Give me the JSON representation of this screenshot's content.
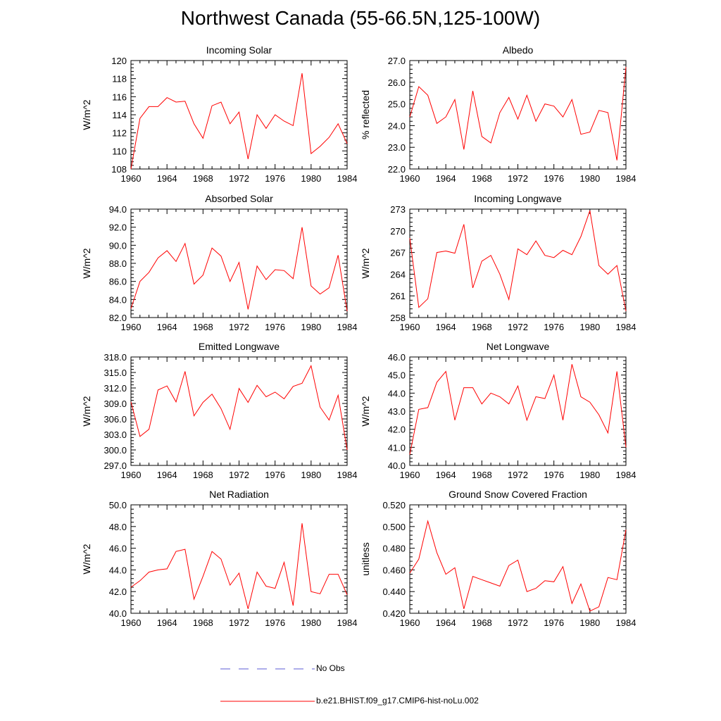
{
  "figure": {
    "title": "Northwest Canada (55-66.5N,125-100W)"
  },
  "legend": {
    "items": [
      {
        "label": "No Obs",
        "color": "#5b5bd6",
        "style": "dashed"
      },
      {
        "label": "b.e21.BHIST.f09_g17.CMIP6-hist-noLu.002",
        "color": "#ff0000",
        "style": "solid"
      }
    ]
  },
  "colors": {
    "series": "#ff0000",
    "axis": "#000000"
  },
  "chart_data": [
    {
      "type": "line",
      "title": "Incoming Solar",
      "ylabel": "W/m^2",
      "xlim": [
        1960,
        1984
      ],
      "ylim": [
        108,
        120
      ],
      "xticks": [
        1960,
        1964,
        1968,
        1972,
        1976,
        1980,
        1984
      ],
      "yticks": [
        "108",
        "110",
        "112",
        "114",
        "116",
        "118",
        "120"
      ],
      "x": [
        1960,
        1961,
        1962,
        1963,
        1964,
        1965,
        1966,
        1967,
        1968,
        1969,
        1970,
        1971,
        1972,
        1973,
        1974,
        1975,
        1976,
        1977,
        1978,
        1979,
        1980,
        1981,
        1982,
        1983,
        1984
      ],
      "series": [
        {
          "values": [
            108.0,
            113.6,
            114.9,
            114.9,
            115.9,
            115.4,
            115.5,
            113.0,
            111.4,
            115.0,
            115.4,
            113.0,
            114.3,
            109.1,
            114.0,
            112.5,
            114.0,
            113.3,
            112.8,
            118.6,
            109.7,
            110.5,
            111.5,
            113.0,
            110.8
          ]
        }
      ]
    },
    {
      "type": "line",
      "title": "Albedo",
      "ylabel": "% reflected",
      "xlim": [
        1960,
        1984
      ],
      "ylim": [
        22.0,
        27.0
      ],
      "xticks": [
        1960,
        1964,
        1968,
        1972,
        1976,
        1980,
        1984
      ],
      "yticks": [
        "22.0",
        "23.0",
        "24.0",
        "25.0",
        "26.0",
        "27.0"
      ],
      "x": [
        1960,
        1961,
        1962,
        1963,
        1964,
        1965,
        1966,
        1967,
        1968,
        1969,
        1970,
        1971,
        1972,
        1973,
        1974,
        1975,
        1976,
        1977,
        1978,
        1979,
        1980,
        1981,
        1982,
        1983,
        1984
      ],
      "series": [
        {
          "values": [
            24.4,
            25.8,
            25.4,
            24.1,
            24.4,
            25.2,
            22.9,
            25.6,
            23.5,
            23.2,
            24.6,
            25.3,
            24.3,
            25.4,
            24.2,
            25.0,
            24.9,
            24.4,
            25.2,
            23.6,
            23.7,
            24.7,
            24.6,
            22.4,
            26.7
          ]
        }
      ]
    },
    {
      "type": "line",
      "title": "Absorbed Solar",
      "ylabel": "W/m^2",
      "xlim": [
        1960,
        1984
      ],
      "ylim": [
        82.0,
        94.0
      ],
      "xticks": [
        1960,
        1964,
        1968,
        1972,
        1976,
        1980,
        1984
      ],
      "yticks": [
        "82.0",
        "84.0",
        "86.0",
        "88.0",
        "90.0",
        "92.0",
        "94.0"
      ],
      "x": [
        1960,
        1961,
        1962,
        1963,
        1964,
        1965,
        1966,
        1967,
        1968,
        1969,
        1970,
        1971,
        1972,
        1973,
        1974,
        1975,
        1976,
        1977,
        1978,
        1979,
        1980,
        1981,
        1982,
        1983,
        1984
      ],
      "series": [
        {
          "values": [
            83.0,
            86.0,
            87.0,
            88.6,
            89.4,
            88.2,
            90.2,
            85.7,
            86.7,
            89.7,
            88.8,
            86.0,
            88.1,
            82.9,
            87.7,
            86.2,
            87.3,
            87.2,
            86.3,
            92.0,
            85.5,
            84.6,
            85.3,
            88.9,
            82.7
          ]
        }
      ]
    },
    {
      "type": "line",
      "title": "Incoming Longwave",
      "ylabel": "W/m^2",
      "xlim": [
        1960,
        1984
      ],
      "ylim": [
        258,
        273
      ],
      "xticks": [
        1960,
        1964,
        1968,
        1972,
        1976,
        1980,
        1984
      ],
      "yticks": [
        "258",
        "261",
        "264",
        "267",
        "270",
        "273"
      ],
      "x": [
        1960,
        1961,
        1962,
        1963,
        1964,
        1965,
        1966,
        1967,
        1968,
        1969,
        1970,
        1971,
        1972,
        1973,
        1974,
        1975,
        1976,
        1977,
        1978,
        1979,
        1980,
        1981,
        1982,
        1983,
        1984
      ],
      "series": [
        {
          "values": [
            269.0,
            259.4,
            260.6,
            267.0,
            267.2,
            266.9,
            270.9,
            262.1,
            265.8,
            266.6,
            264.0,
            260.5,
            267.5,
            266.7,
            268.6,
            266.6,
            266.3,
            267.3,
            266.7,
            269.2,
            272.8,
            265.2,
            264.0,
            265.2,
            258.9
          ]
        }
      ]
    },
    {
      "type": "line",
      "title": "Emitted Longwave",
      "ylabel": "W/m^2",
      "xlim": [
        1960,
        1984
      ],
      "ylim": [
        297.0,
        318.0
      ],
      "xticks": [
        1960,
        1964,
        1968,
        1972,
        1976,
        1980,
        1984
      ],
      "yticks": [
        "297.0",
        "300.0",
        "303.0",
        "306.0",
        "309.0",
        "312.0",
        "315.0",
        "318.0"
      ],
      "x": [
        1960,
        1961,
        1962,
        1963,
        1964,
        1965,
        1966,
        1967,
        1968,
        1969,
        1970,
        1971,
        1972,
        1973,
        1974,
        1975,
        1976,
        1977,
        1978,
        1979,
        1980,
        1981,
        1982,
        1983,
        1984
      ],
      "series": [
        {
          "values": [
            309.3,
            302.6,
            304.0,
            311.6,
            312.4,
            309.3,
            315.2,
            306.6,
            309.2,
            310.8,
            308.0,
            304.0,
            311.9,
            309.2,
            312.5,
            310.3,
            311.2,
            309.9,
            312.3,
            312.9,
            316.3,
            308.3,
            305.8,
            310.6,
            300.0
          ]
        }
      ]
    },
    {
      "type": "line",
      "title": "Net Longwave",
      "ylabel": "W/m^2",
      "xlim": [
        1960,
        1984
      ],
      "ylim": [
        40.0,
        46.0
      ],
      "xticks": [
        1960,
        1964,
        1968,
        1972,
        1976,
        1980,
        1984
      ],
      "yticks": [
        "40.0",
        "41.0",
        "42.0",
        "43.0",
        "44.0",
        "45.0",
        "46.0"
      ],
      "x": [
        1960,
        1961,
        1962,
        1963,
        1964,
        1965,
        1966,
        1967,
        1968,
        1969,
        1970,
        1971,
        1972,
        1973,
        1974,
        1975,
        1976,
        1977,
        1978,
        1979,
        1980,
        1981,
        1982,
        1983,
        1984
      ],
      "series": [
        {
          "values": [
            40.6,
            43.1,
            43.2,
            44.6,
            45.2,
            42.5,
            44.3,
            44.3,
            43.4,
            44.0,
            43.8,
            43.4,
            44.4,
            42.5,
            43.8,
            43.7,
            45.0,
            42.5,
            45.6,
            43.8,
            43.5,
            42.8,
            41.8,
            45.2,
            41.0
          ]
        }
      ]
    },
    {
      "type": "line",
      "title": "Net Radiation",
      "ylabel": "W/m^2",
      "xlim": [
        1960,
        1984
      ],
      "ylim": [
        40.0,
        50.0
      ],
      "xticks": [
        1960,
        1964,
        1968,
        1972,
        1976,
        1980,
        1984
      ],
      "yticks": [
        "40.0",
        "42.0",
        "44.0",
        "46.0",
        "48.0",
        "50.0"
      ],
      "x": [
        1960,
        1961,
        1962,
        1963,
        1964,
        1965,
        1966,
        1967,
        1968,
        1969,
        1970,
        1971,
        1972,
        1973,
        1974,
        1975,
        1976,
        1977,
        1978,
        1979,
        1980,
        1981,
        1982,
        1983,
        1984
      ],
      "series": [
        {
          "values": [
            42.4,
            43.0,
            43.8,
            44.0,
            44.1,
            45.7,
            45.9,
            41.3,
            43.4,
            45.7,
            45.0,
            42.6,
            43.7,
            40.4,
            43.8,
            42.5,
            42.3,
            44.7,
            40.7,
            48.3,
            42.0,
            41.8,
            43.6,
            43.6,
            41.7
          ]
        }
      ]
    },
    {
      "type": "line",
      "title": "Ground Snow Covered Fraction",
      "ylabel": "unitless",
      "xlim": [
        1960,
        1984
      ],
      "ylim": [
        0.42,
        0.52
      ],
      "xticks": [
        1960,
        1964,
        1968,
        1972,
        1976,
        1980,
        1984
      ],
      "yticks": [
        "0.420",
        "0.440",
        "0.460",
        "0.480",
        "0.500",
        "0.520"
      ],
      "x": [
        1960,
        1961,
        1962,
        1963,
        1964,
        1965,
        1966,
        1967,
        1968,
        1969,
        1970,
        1971,
        1972,
        1973,
        1974,
        1975,
        1976,
        1977,
        1978,
        1979,
        1980,
        1981,
        1982,
        1983,
        1984
      ],
      "series": [
        {
          "values": [
            0.457,
            0.47,
            0.505,
            0.476,
            0.456,
            0.462,
            0.424,
            0.454,
            0.451,
            0.448,
            0.445,
            0.464,
            0.469,
            0.44,
            0.443,
            0.45,
            0.449,
            0.463,
            0.429,
            0.447,
            0.422,
            0.426,
            0.453,
            0.451,
            0.497
          ]
        }
      ]
    }
  ]
}
